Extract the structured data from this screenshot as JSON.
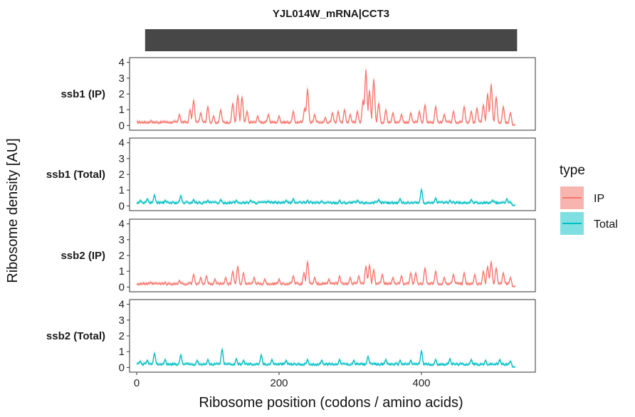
{
  "chart_data": {
    "type": "line",
    "title": "YJL014W_mRNA|CCT3",
    "xlabel": "Ribosome position (codons / amino acids)",
    "ylabel": "Ribosome density [AU]",
    "xlim": [
      -10,
      560
    ],
    "ylim": [
      -0.3,
      4.3
    ],
    "xticks": [
      0,
      200,
      400
    ],
    "yticks": [
      0,
      1,
      2,
      3,
      4
    ],
    "gene_bar": [
      0,
      532
    ],
    "grid": false,
    "legend": {
      "title": "type",
      "position": "right",
      "entries": [
        {
          "label": "IP",
          "color": "#F8766D",
          "fill": "#F8B4AE"
        },
        {
          "label": "Total",
          "color": "#00BFC4",
          "fill": "#7FDFE1"
        }
      ]
    },
    "panels": [
      {
        "label": "ssb1 (IP)",
        "series_type": "IP",
        "baseline": 0.2,
        "peaks": [
          [
            20,
            0.3
          ],
          [
            40,
            0.25
          ],
          [
            60,
            0.7
          ],
          [
            75,
            1.0
          ],
          [
            80,
            1.6
          ],
          [
            90,
            0.8
          ],
          [
            100,
            1.2
          ],
          [
            108,
            0.6
          ],
          [
            118,
            1.0
          ],
          [
            135,
            1.4
          ],
          [
            142,
            1.9
          ],
          [
            148,
            1.8
          ],
          [
            155,
            0.9
          ],
          [
            170,
            0.6
          ],
          [
            185,
            0.7
          ],
          [
            200,
            0.6
          ],
          [
            220,
            0.9
          ],
          [
            236,
            1.1
          ],
          [
            240,
            2.3
          ],
          [
            250,
            0.7
          ],
          [
            265,
            0.5
          ],
          [
            275,
            0.8
          ],
          [
            283,
            0.9
          ],
          [
            292,
            1.0
          ],
          [
            300,
            0.7
          ],
          [
            310,
            0.9
          ],
          [
            318,
            1.6
          ],
          [
            322,
            3.5
          ],
          [
            327,
            2.2
          ],
          [
            333,
            2.9
          ],
          [
            340,
            1.4
          ],
          [
            350,
            1.0
          ],
          [
            360,
            0.8
          ],
          [
            372,
            0.7
          ],
          [
            385,
            0.8
          ],
          [
            397,
            0.9
          ],
          [
            405,
            1.3
          ],
          [
            420,
            1.2
          ],
          [
            432,
            0.7
          ],
          [
            445,
            0.9
          ],
          [
            460,
            1.2
          ],
          [
            470,
            0.9
          ],
          [
            478,
            1.1
          ],
          [
            487,
            1.3
          ],
          [
            493,
            2.0
          ],
          [
            498,
            2.6
          ],
          [
            505,
            1.8
          ],
          [
            515,
            1.2
          ],
          [
            525,
            0.8
          ]
        ]
      },
      {
        "label": "ssb1 (Total)",
        "series_type": "Total",
        "baseline": 0.2,
        "peaks": [
          [
            5,
            0.35
          ],
          [
            15,
            0.45
          ],
          [
            25,
            0.7
          ],
          [
            40,
            0.35
          ],
          [
            62,
            0.65
          ],
          [
            80,
            0.4
          ],
          [
            100,
            0.35
          ],
          [
            118,
            0.4
          ],
          [
            140,
            0.35
          ],
          [
            160,
            0.35
          ],
          [
            185,
            0.3
          ],
          [
            210,
            0.35
          ],
          [
            220,
            0.45
          ],
          [
            240,
            0.35
          ],
          [
            260,
            0.3
          ],
          [
            285,
            0.35
          ],
          [
            310,
            0.35
          ],
          [
            340,
            0.4
          ],
          [
            370,
            0.45
          ],
          [
            400,
            1.05
          ],
          [
            420,
            0.5
          ],
          [
            440,
            0.35
          ],
          [
            470,
            0.4
          ],
          [
            500,
            0.35
          ],
          [
            520,
            0.45
          ]
        ]
      },
      {
        "label": "ssb2 (IP)",
        "series_type": "IP",
        "baseline": 0.2,
        "peaks": [
          [
            20,
            0.3
          ],
          [
            40,
            0.3
          ],
          [
            60,
            0.4
          ],
          [
            80,
            0.8
          ],
          [
            90,
            0.6
          ],
          [
            98,
            0.7
          ],
          [
            110,
            0.5
          ],
          [
            125,
            0.6
          ],
          [
            135,
            1.0
          ],
          [
            142,
            1.3
          ],
          [
            150,
            0.9
          ],
          [
            165,
            0.6
          ],
          [
            180,
            0.5
          ],
          [
            200,
            0.5
          ],
          [
            220,
            0.7
          ],
          [
            235,
            0.9
          ],
          [
            240,
            1.6
          ],
          [
            250,
            0.6
          ],
          [
            270,
            0.5
          ],
          [
            285,
            0.7
          ],
          [
            300,
            0.6
          ],
          [
            312,
            0.7
          ],
          [
            322,
            1.3
          ],
          [
            327,
            1.4
          ],
          [
            333,
            1.1
          ],
          [
            345,
            0.8
          ],
          [
            360,
            0.6
          ],
          [
            372,
            0.7
          ],
          [
            385,
            0.9
          ],
          [
            392,
            0.9
          ],
          [
            405,
            1.2
          ],
          [
            420,
            1.0
          ],
          [
            432,
            0.6
          ],
          [
            445,
            0.8
          ],
          [
            460,
            0.9
          ],
          [
            475,
            0.8
          ],
          [
            487,
            1.0
          ],
          [
            493,
            1.3
          ],
          [
            498,
            1.6
          ],
          [
            505,
            1.2
          ],
          [
            515,
            0.9
          ],
          [
            525,
            0.6
          ]
        ]
      },
      {
        "label": "ssb2 (Total)",
        "series_type": "Total",
        "baseline": 0.2,
        "peaks": [
          [
            5,
            0.4
          ],
          [
            15,
            0.45
          ],
          [
            25,
            0.9
          ],
          [
            40,
            0.5
          ],
          [
            62,
            0.8
          ],
          [
            85,
            0.45
          ],
          [
            100,
            0.5
          ],
          [
            120,
            1.15
          ],
          [
            140,
            0.55
          ],
          [
            150,
            0.45
          ],
          [
            175,
            0.8
          ],
          [
            190,
            0.5
          ],
          [
            210,
            0.45
          ],
          [
            240,
            0.5
          ],
          [
            260,
            0.45
          ],
          [
            285,
            0.5
          ],
          [
            305,
            0.45
          ],
          [
            325,
            0.7
          ],
          [
            350,
            0.5
          ],
          [
            370,
            0.45
          ],
          [
            385,
            0.45
          ],
          [
            400,
            1.05
          ],
          [
            420,
            0.5
          ],
          [
            440,
            0.55
          ],
          [
            470,
            0.5
          ],
          [
            490,
            0.45
          ],
          [
            510,
            0.5
          ],
          [
            525,
            0.4
          ]
        ]
      }
    ]
  }
}
